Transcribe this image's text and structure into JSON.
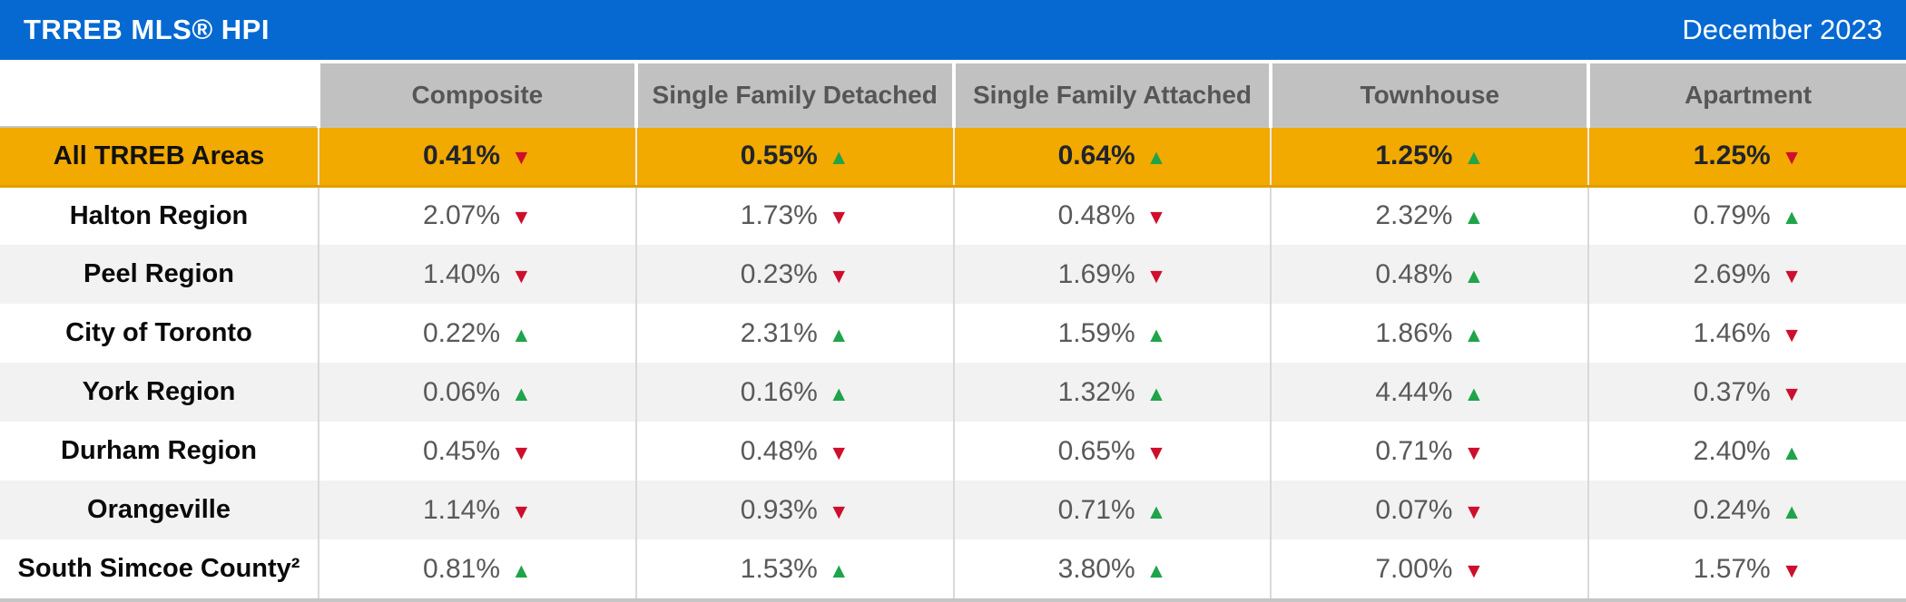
{
  "header": {
    "title": "TRREB MLS® HPI",
    "date": "December 2023"
  },
  "icons": {
    "up": "▲",
    "down": "▼"
  },
  "colors": {
    "brand_blue": "#0669D2",
    "header_gray": "#C1C1C1",
    "highlight_gold": "#F2A900",
    "stripe_gray": "#F2F2F2",
    "up_green": "#1FA44A",
    "down_red": "#CE0E2D",
    "value_text_gray": "#595959"
  },
  "chart_data": {
    "type": "table",
    "title": "TRREB MLS® HPI",
    "period": "December 2023",
    "columns": [
      "Composite",
      "Single Family Detached",
      "Single Family Attached",
      "Townhouse",
      "Apartment"
    ],
    "rows": [
      {
        "region": "All TRREB Areas",
        "highlight": true,
        "cells": [
          {
            "value": "0.41%",
            "dir": "down"
          },
          {
            "value": "0.55%",
            "dir": "up"
          },
          {
            "value": "0.64%",
            "dir": "up"
          },
          {
            "value": "1.25%",
            "dir": "up"
          },
          {
            "value": "1.25%",
            "dir": "down"
          }
        ]
      },
      {
        "region": "Halton Region",
        "highlight": false,
        "cells": [
          {
            "value": "2.07%",
            "dir": "down"
          },
          {
            "value": "1.73%",
            "dir": "down"
          },
          {
            "value": "0.48%",
            "dir": "down"
          },
          {
            "value": "2.32%",
            "dir": "up"
          },
          {
            "value": "0.79%",
            "dir": "up"
          }
        ]
      },
      {
        "region": "Peel Region",
        "highlight": false,
        "cells": [
          {
            "value": "1.40%",
            "dir": "down"
          },
          {
            "value": "0.23%",
            "dir": "down"
          },
          {
            "value": "1.69%",
            "dir": "down"
          },
          {
            "value": "0.48%",
            "dir": "up"
          },
          {
            "value": "2.69%",
            "dir": "down"
          }
        ]
      },
      {
        "region": "City of Toronto",
        "highlight": false,
        "cells": [
          {
            "value": "0.22%",
            "dir": "up"
          },
          {
            "value": "2.31%",
            "dir": "up"
          },
          {
            "value": "1.59%",
            "dir": "up"
          },
          {
            "value": "1.86%",
            "dir": "up"
          },
          {
            "value": "1.46%",
            "dir": "down"
          }
        ]
      },
      {
        "region": "York Region",
        "highlight": false,
        "cells": [
          {
            "value": "0.06%",
            "dir": "up"
          },
          {
            "value": "0.16%",
            "dir": "up"
          },
          {
            "value": "1.32%",
            "dir": "up"
          },
          {
            "value": "4.44%",
            "dir": "up"
          },
          {
            "value": "0.37%",
            "dir": "down"
          }
        ]
      },
      {
        "region": "Durham Region",
        "highlight": false,
        "cells": [
          {
            "value": "0.45%",
            "dir": "down"
          },
          {
            "value": "0.48%",
            "dir": "down"
          },
          {
            "value": "0.65%",
            "dir": "down"
          },
          {
            "value": "0.71%",
            "dir": "down"
          },
          {
            "value": "2.40%",
            "dir": "up"
          }
        ]
      },
      {
        "region": "Orangeville",
        "highlight": false,
        "cells": [
          {
            "value": "1.14%",
            "dir": "down"
          },
          {
            "value": "0.93%",
            "dir": "down"
          },
          {
            "value": "0.71%",
            "dir": "up"
          },
          {
            "value": "0.07%",
            "dir": "down"
          },
          {
            "value": "0.24%",
            "dir": "up"
          }
        ]
      },
      {
        "region": "South Simcoe County²",
        "highlight": false,
        "cells": [
          {
            "value": "0.81%",
            "dir": "up"
          },
          {
            "value": "1.53%",
            "dir": "up"
          },
          {
            "value": "3.80%",
            "dir": "up"
          },
          {
            "value": "7.00%",
            "dir": "down"
          },
          {
            "value": "1.57%",
            "dir": "down"
          }
        ]
      }
    ]
  }
}
